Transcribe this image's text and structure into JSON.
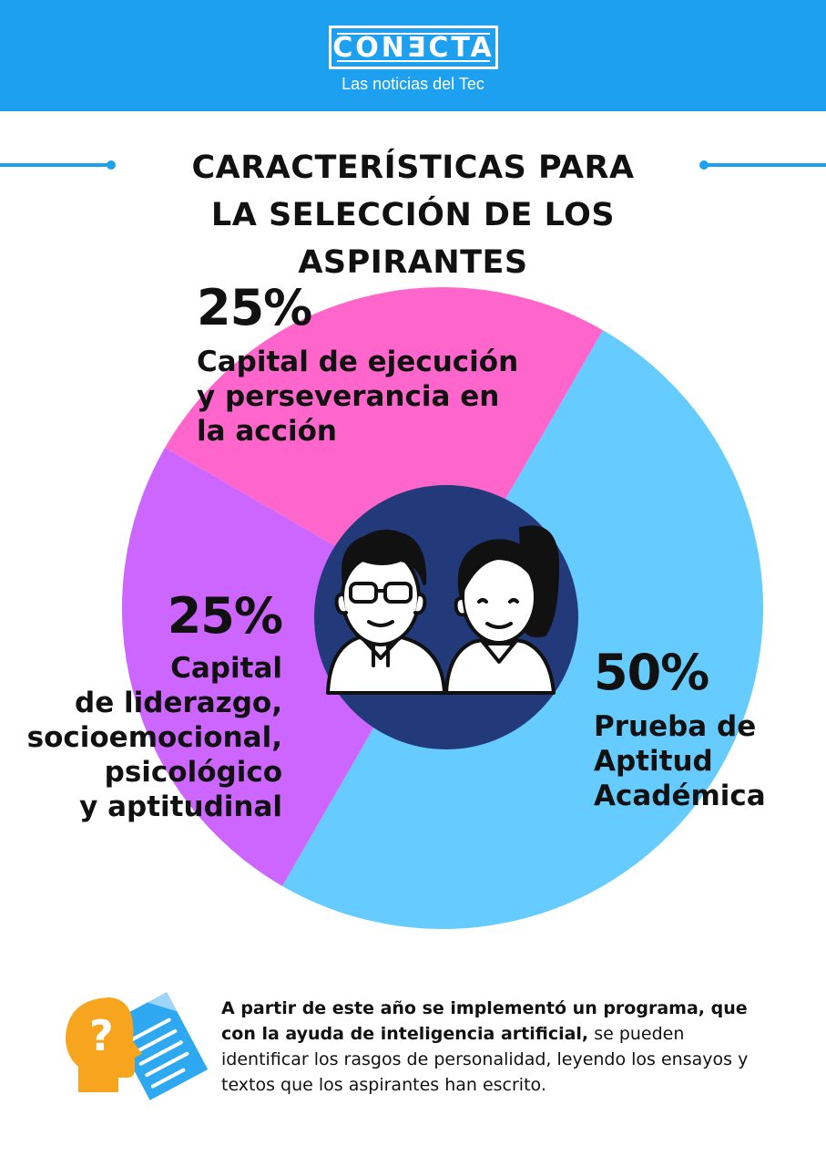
{
  "header": {
    "brand": "CONƎCTA",
    "tagline": "Las noticias del Tec",
    "colors": {
      "header_bg": "#1ea0f0"
    }
  },
  "title": {
    "line1": "Características para",
    "line2": "la selección de los aspirantes"
  },
  "chart_data": {
    "type": "pie",
    "title": "Características para la selección de los aspirantes",
    "slices": [
      {
        "label": "Prueba de Aptitud Académica",
        "value": 50,
        "value_text": "50%",
        "color": "#66ccff",
        "label_lines": [
          "Prueba de",
          "Aptitud",
          "Académica"
        ]
      },
      {
        "label": "Capital de liderazgo, socioemocional, psicológico y aptitudinal",
        "value": 25,
        "value_text": "25%",
        "color": "#cc66ff",
        "label_lines": [
          "Capital",
          "de liderazgo,",
          "socioemocional,",
          "psicológico",
          "y aptitudinal"
        ]
      },
      {
        "label": "Capital de ejecución y perseverancia en la acción",
        "value": 25,
        "value_text": "25%",
        "color": "#ff66cc",
        "label_lines": [
          "Capital de ejecución",
          "y perseverancia en",
          "la acción"
        ]
      }
    ],
    "center_icon": "two-students-icon",
    "center_color": "#233a7a"
  },
  "footer": {
    "icon": "head-question-document-icon",
    "text_bold": "A partir de este año se implementó un programa, que con la ayuda de inteligencia artificial,",
    "text_regular": " se pueden identificar los rasgos de personalidad, leyendo los ensayos y textos que los aspirantes han escrito."
  }
}
